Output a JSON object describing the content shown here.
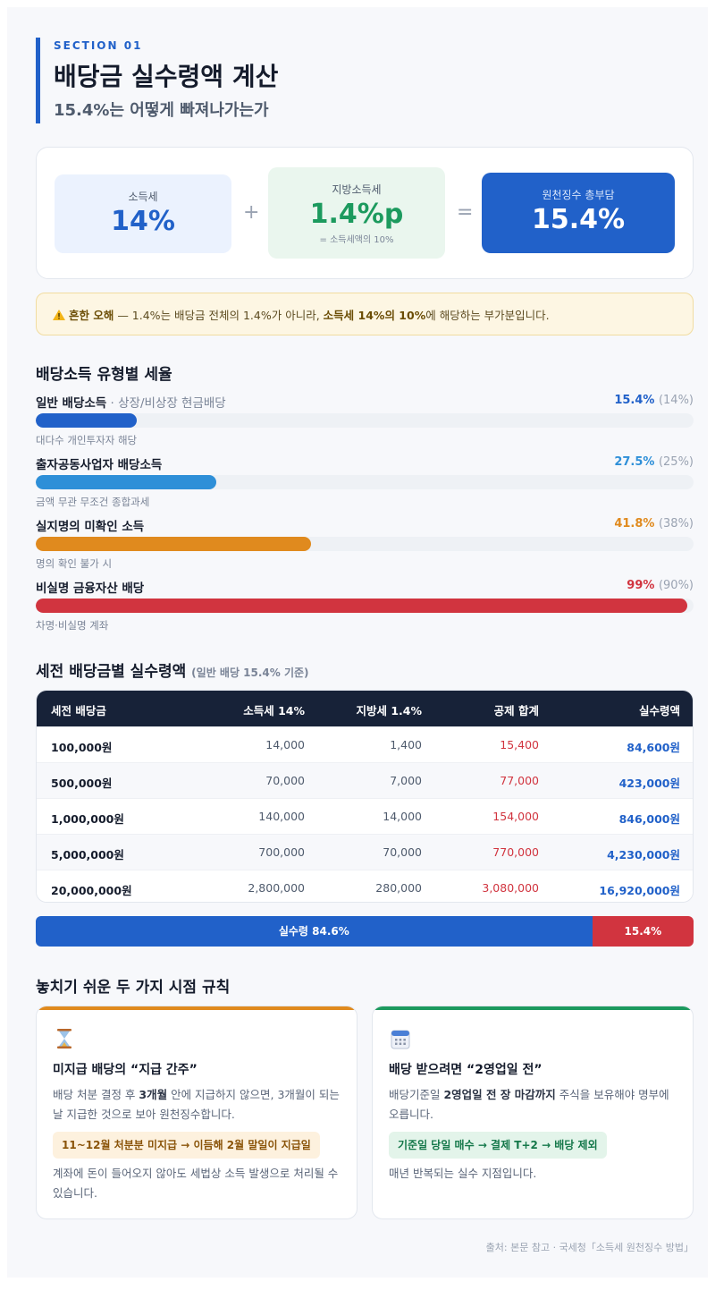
{
  "header": {
    "section_label": "SECTION 01",
    "title": "배당금 실수령액 계산",
    "subtitle": "15.4%는 어떻게 빠져나가는가"
  },
  "formula": {
    "income_tax": {
      "label": "소득세",
      "value": "14%"
    },
    "plus": "+",
    "local_tax": {
      "label": "지방소득세",
      "value": "1.4%p",
      "note": "= 소득세액의 10%"
    },
    "equals": "=",
    "total": {
      "label": "원천징수 총부담",
      "value": "15.4%"
    }
  },
  "warning": {
    "icon": "warning-icon",
    "strong": "흔한 오해",
    "text_1": " — 1.4%는 배당금 전체의 1.4%가 아니라, ",
    "strong_2": "소득세 14%의 10%",
    "text_2": "에 해당하는 부가분입니다."
  },
  "rates": {
    "heading": "배당소득 유형별 세율",
    "items": [
      {
        "name": "일반 배당소득",
        "desc": " · 상장/비상장 현금배당",
        "total": "15.4%",
        "base": "(14%)",
        "note": "대다수 개인투자자 해당",
        "color": "#2161c9",
        "level_pct": 15.4
      },
      {
        "name": "출자공동사업자 배당소득",
        "desc": "",
        "total": "27.5%",
        "base": "(25%)",
        "note": "금액 무관 무조건 종합과세",
        "color": "#2e8fd8",
        "level_pct": 27.5
      },
      {
        "name": "실지명의 미확인 소득",
        "desc": "",
        "total": "41.8%",
        "base": "(38%)",
        "note": "명의 확인 불가 시",
        "color": "#e08a1e",
        "level_pct": 41.8
      },
      {
        "name": "비실명 금융자산 배당",
        "desc": "",
        "total": "99%",
        "base": "(90%)",
        "note": "차명·비실명 계좌",
        "color": "#d1343f",
        "level_pct": 99
      }
    ]
  },
  "table": {
    "heading": "세전 배당금별 실수령액",
    "heading_note": "(일반 배당 15.4% 기준)",
    "columns": [
      "세전 배당금",
      "소득세 14%",
      "지방세 1.4%",
      "공제 합계",
      "실수령액"
    ],
    "rows": [
      [
        "100,000원",
        "14,000",
        "1,400",
        "15,400",
        "84,600원"
      ],
      [
        "500,000원",
        "70,000",
        "7,000",
        "77,000",
        "423,000원"
      ],
      [
        "1,000,000원",
        "140,000",
        "14,000",
        "154,000",
        "846,000원"
      ],
      [
        "5,000,000원",
        "700,000",
        "70,000",
        "770,000",
        "4,230,000원"
      ],
      [
        "20,000,000원",
        "2,800,000",
        "280,000",
        "3,080,000",
        "16,920,000원"
      ]
    ]
  },
  "split_bar": {
    "net_label": "실수령 84.6%",
    "net_pct": 84.6,
    "tax_label": "15.4%",
    "tax_pct": 15.4
  },
  "rules": {
    "heading": "놓치기 쉬운 두 가지 시점 규칙",
    "card1": {
      "icon": "hourglass-icon",
      "accent": "#e08a1e",
      "title": "미지급 배당의 “지급 간주”",
      "body_1a": "배당 처분 결정 후 ",
      "body_1b": "3개월",
      "body_1c": " 안에 지급하지 않으면, 3개월이 되는 날 지급한 것으로 보아 원천징수합니다.",
      "chip": "11~12월 처분분 미지급 → 이듬해 2월 말일이 지급일",
      "body_2": "계좌에 돈이 들어오지 않아도 세법상 소득 발생으로 처리될 수 있습니다."
    },
    "card2": {
      "icon": "calendar-icon",
      "accent": "#1c9a5e",
      "title": "배당 받으려면 “2영업일 전”",
      "body_1a": "배당기준일 ",
      "body_1b": "2영업일 전 장 마감까지",
      "body_1c": " 주식을 보유해야 명부에 오릅니다.",
      "chip": "기준일 당일 매수 → 결제 T+2 → 배당 제외",
      "body_2": "매년 반복되는 실수 지점입니다."
    }
  },
  "source": "출처: 본문 참고 · 국세청「소득세 원천징수 방법」"
}
